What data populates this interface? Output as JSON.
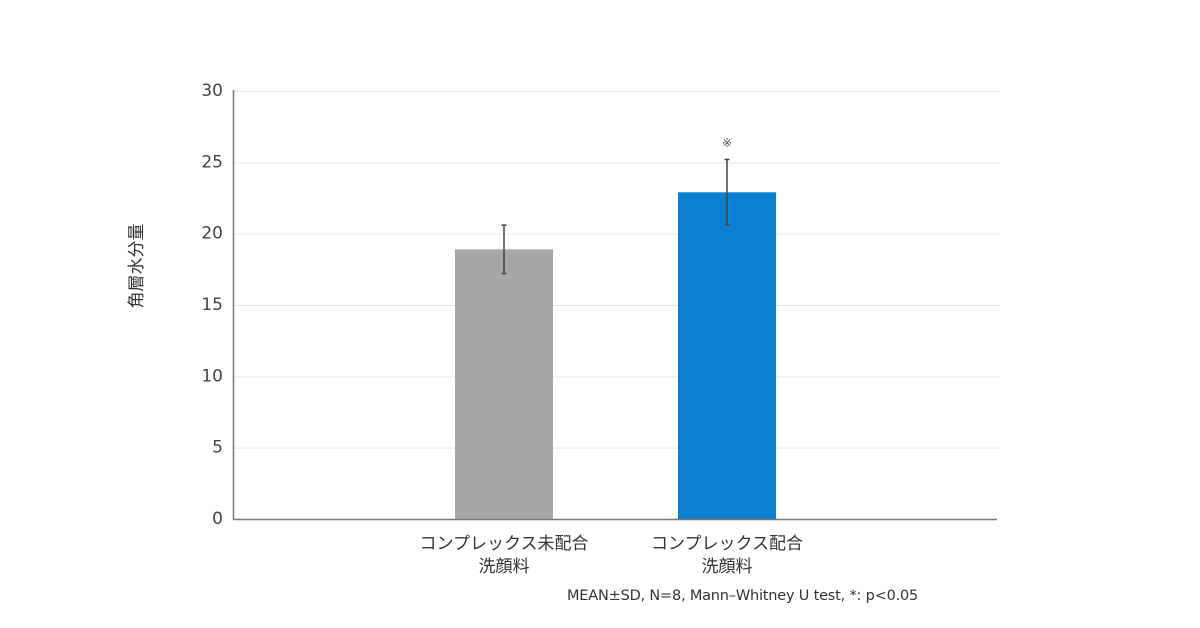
{
  "chart_data": {
    "type": "bar",
    "title": "",
    "xlabel": "",
    "ylabel": "角層水分量",
    "ylim": [
      0,
      30
    ],
    "yticks": [
      0,
      5,
      10,
      15,
      20,
      25,
      30
    ],
    "grid": true,
    "categories": [
      [
        "コンプレックス未配合",
        "洗顔料"
      ],
      [
        "コンプレックス配合",
        "洗顔料"
      ]
    ],
    "values": [
      18.9,
      22.9
    ],
    "errors": [
      1.7,
      2.3
    ],
    "colors": [
      "#a7a6a8",
      "#0a7fcf"
    ],
    "annotations": [
      {
        "category_index": 1,
        "text": "※"
      }
    ],
    "footnote": "MEAN±SD, N=8, Mann–Whitney U test, *: p<0.05"
  },
  "labels": {
    "ylabel": "角層水分量",
    "significance_mark": "※",
    "footnote": "MEAN±SD, N=8, Mann–Whitney U test, *: p<0.05"
  }
}
